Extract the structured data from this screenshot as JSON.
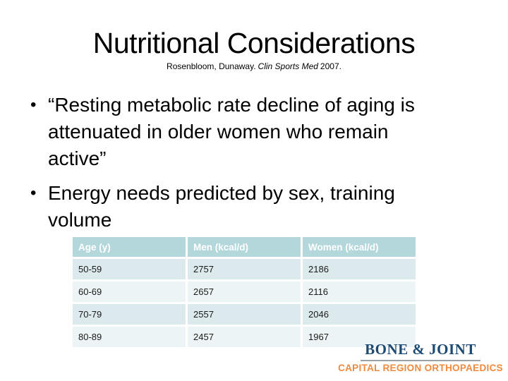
{
  "slide": {
    "title": "Nutritional Considerations",
    "citation": {
      "authors": "Rosenbloom, Dunaway.",
      "journal_italic": "Clin Sports Med",
      "year": "2007."
    },
    "bullet_glyph": "•",
    "bullets": [
      {
        "lines": [
          "“Resting metabolic rate decline of aging is",
          "attenuated in older women who remain",
          "active”"
        ]
      },
      {
        "lines": [
          "Energy needs predicted by sex, training",
          "volume"
        ]
      }
    ]
  },
  "table": {
    "headers": [
      "Age (y)",
      "Men (kcal/d)",
      "Women (kcal/d)"
    ],
    "rows": [
      [
        "50-59",
        "2757",
        "2186"
      ],
      [
        "60-69",
        "2657",
        "2116"
      ],
      [
        "70-79",
        "2557",
        "2046"
      ],
      [
        "80-89",
        "2457",
        "1967"
      ]
    ]
  },
  "logo": {
    "name": "BONE & JOINT",
    "tagline": "CAPITAL REGION ORTHOPAEDICS"
  },
  "colors": {
    "table_header_bg": "#b4d7dc",
    "table_row_odd": "#dce9ed",
    "table_row_even": "#edf4f6",
    "table_header_text": "#ffffff",
    "logo_navy": "#1d4a72",
    "logo_orange": "#ef8a3e",
    "logo_underline": "#9aa0a4"
  }
}
